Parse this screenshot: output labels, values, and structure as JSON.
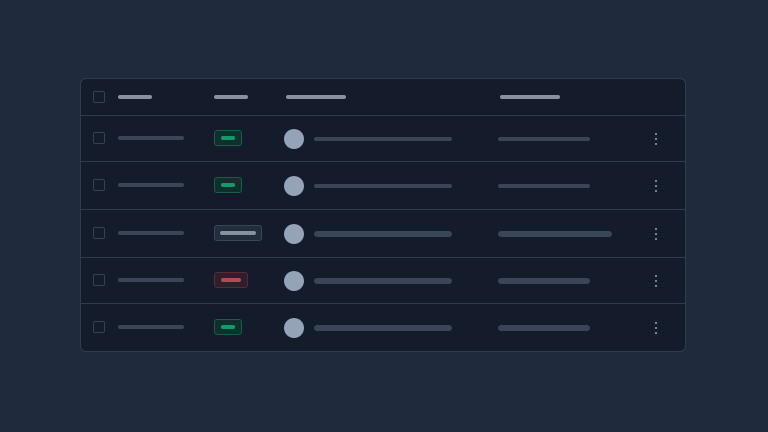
{
  "theme": {
    "background": "#1f2a3c",
    "surface": "#141b2b",
    "border": "#2f3b4f",
    "skeleton": "#3a4558",
    "header_skeleton": "#8a919e",
    "avatar": "#94a3b8"
  },
  "badge_styles": {
    "success": {
      "bg": "#0f2f2c",
      "border": "#155e4a",
      "fill": "#109b6a"
    },
    "neutral": {
      "bg": "#222d3d",
      "border": "#3a4558",
      "fill": "#8a919e"
    },
    "danger": {
      "bg": "#2e1f2a",
      "border": "#5a2a38",
      "fill": "#b24a58"
    }
  },
  "table": {
    "columns": 4,
    "rows": [
      {
        "status": "success",
        "thin": true,
        "wide_last": false
      },
      {
        "status": "success",
        "thin": true,
        "wide_last": false
      },
      {
        "status": "neutral",
        "thin": false,
        "wide_last": true
      },
      {
        "status": "danger",
        "thin": false,
        "wide_last": false
      },
      {
        "status": "success",
        "thin": false,
        "wide_last": false
      }
    ]
  }
}
